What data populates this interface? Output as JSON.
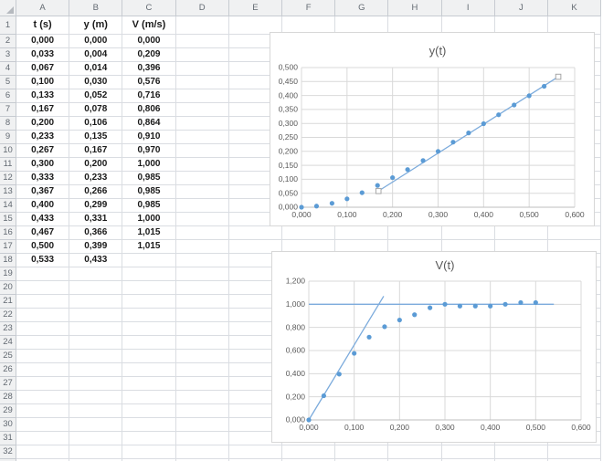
{
  "decimal_separator": ",",
  "sheet": {
    "columns": [
      "A",
      "B",
      "C",
      "D",
      "E",
      "F",
      "G",
      "H",
      "I",
      "J",
      "K"
    ],
    "header_row": [
      "t (s)",
      "y (m)",
      "V (m/s)"
    ],
    "first_data_row_number": 2,
    "visible_row_count": 33,
    "data_rows": [
      [
        "0,000",
        "0,000",
        "0,000"
      ],
      [
        "0,033",
        "0,004",
        "0,209"
      ],
      [
        "0,067",
        "0,014",
        "0,396"
      ],
      [
        "0,100",
        "0,030",
        "0,576"
      ],
      [
        "0,133",
        "0,052",
        "0,716"
      ],
      [
        "0,167",
        "0,078",
        "0,806"
      ],
      [
        "0,200",
        "0,106",
        "0,864"
      ],
      [
        "0,233",
        "0,135",
        "0,910"
      ],
      [
        "0,267",
        "0,167",
        "0,970"
      ],
      [
        "0,300",
        "0,200",
        "1,000"
      ],
      [
        "0,333",
        "0,233",
        "0,985"
      ],
      [
        "0,367",
        "0,266",
        "0,985"
      ],
      [
        "0,400",
        "0,299",
        "0,985"
      ],
      [
        "0,433",
        "0,331",
        "1,000"
      ],
      [
        "0,467",
        "0,366",
        "1,015"
      ],
      [
        "0,500",
        "0,399",
        "1,015"
      ],
      [
        "0,533",
        "0,433",
        ""
      ]
    ]
  },
  "chart_data": [
    {
      "type": "scatter",
      "title": "y(t)",
      "xlabel": "",
      "ylabel": "",
      "xlim": [
        0,
        0.6
      ],
      "ylim": [
        0,
        0.5
      ],
      "x_tick_step": 0.1,
      "y_tick_step": 0.05,
      "tick_decimals": 3,
      "grid": true,
      "legend": "none",
      "series": [
        {
          "name": "y-data-points",
          "marker": "circle",
          "line": false,
          "points": [
            [
              0,
              0
            ],
            [
              0.033,
              0.004
            ],
            [
              0.067,
              0.014
            ],
            [
              0.1,
              0.03
            ],
            [
              0.133,
              0.052
            ],
            [
              0.167,
              0.078
            ],
            [
              0.2,
              0.106
            ],
            [
              0.233,
              0.135
            ],
            [
              0.267,
              0.167
            ],
            [
              0.3,
              0.2
            ],
            [
              0.333,
              0.233
            ],
            [
              0.367,
              0.266
            ],
            [
              0.4,
              0.299
            ],
            [
              0.433,
              0.331
            ],
            [
              0.467,
              0.366
            ],
            [
              0.5,
              0.399
            ],
            [
              0.533,
              0.433
            ]
          ]
        },
        {
          "name": "linear-fit-line",
          "marker": "square",
          "line": true,
          "points": [
            [
              0.169,
              0.058
            ],
            [
              0.564,
              0.467
            ]
          ]
        }
      ]
    },
    {
      "type": "scatter",
      "title": "V(t)",
      "xlabel": "",
      "ylabel": "",
      "xlim": [
        0,
        0.6
      ],
      "ylim": [
        0,
        1.2
      ],
      "x_tick_step": 0.1,
      "y_tick_step": 0.2,
      "tick_decimals": 3,
      "grid": true,
      "legend": "none",
      "series": [
        {
          "name": "v-data-points",
          "marker": "circle",
          "line": false,
          "points": [
            [
              0,
              0
            ],
            [
              0.033,
              0.209
            ],
            [
              0.067,
              0.396
            ],
            [
              0.1,
              0.576
            ],
            [
              0.133,
              0.716
            ],
            [
              0.167,
              0.806
            ],
            [
              0.2,
              0.864
            ],
            [
              0.233,
              0.91
            ],
            [
              0.267,
              0.97
            ],
            [
              0.3,
              1.0
            ],
            [
              0.333,
              0.985
            ],
            [
              0.367,
              0.985
            ],
            [
              0.4,
              0.985
            ],
            [
              0.433,
              1.0
            ],
            [
              0.467,
              1.015
            ],
            [
              0.5,
              1.015
            ]
          ]
        },
        {
          "name": "terminal-velocity-line",
          "marker": "none",
          "line": true,
          "points": [
            [
              0,
              1.0
            ],
            [
              0.54,
              1.0
            ]
          ]
        },
        {
          "name": "initial-slope-line",
          "marker": "none",
          "line": true,
          "points": [
            [
              0,
              0
            ],
            [
              0.165,
              1.07
            ]
          ]
        }
      ]
    }
  ],
  "colors": {
    "accent": "#5B9BD5",
    "trend_line": "#7CABDC",
    "chart_text": "#595959",
    "chart_grid": "#D9D9D9",
    "chart_axis": "#BFBFBF",
    "square_marker_border": "#A6A6A6",
    "sheet_grid": "#DADDE2",
    "header_bg": "#F0F1F2",
    "header_border": "#C7CBD1",
    "header_text": "#636A72"
  }
}
